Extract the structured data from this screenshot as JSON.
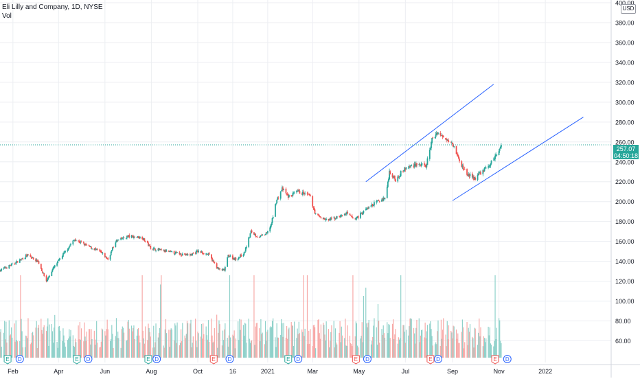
{
  "header": {
    "title": "Eli Lilly and Company, 1D, NYSE",
    "volume_label": "Vol",
    "currency": "USD"
  },
  "last_price": {
    "value": "257.07",
    "countdown": "04:50:18",
    "level": 257.07
  },
  "colors": {
    "up": "#26a69a",
    "down": "#ef5350",
    "up_volume": "#8fd1ca",
    "down_volume": "#f7a9a7",
    "channel": "#2962ff",
    "price_line": "#26a69a",
    "grid": "#eceef2"
  },
  "chart_data": {
    "type": "candlestick",
    "y_axis": {
      "min": 50,
      "max": 400,
      "ticks": [
        "400.00",
        "380.00",
        "360.00",
        "340.00",
        "320.00",
        "300.00",
        "280.00",
        "260.00",
        "240.00",
        "220.00",
        "200.00",
        "180.00",
        "160.00",
        "140.00",
        "120.00",
        "100.00",
        "80.00",
        "60.00"
      ],
      "tick_values": [
        400,
        380,
        360,
        340,
        320,
        300,
        280,
        260,
        240,
        220,
        200,
        180,
        160,
        140,
        120,
        100,
        80,
        60
      ],
      "side": "right",
      "grid": true
    },
    "x_axis": {
      "start": "2020-01-15",
      "end": "2022-03-15",
      "ticks": [
        {
          "label": "Feb",
          "date": "2020-02-01"
        },
        {
          "label": "Apr",
          "date": "2020-04-01"
        },
        {
          "label": "Jun",
          "date": "2020-06-01"
        },
        {
          "label": "Aug",
          "date": "2020-08-01"
        },
        {
          "label": "Oct",
          "date": "2020-10-01"
        },
        {
          "label": "16",
          "date": "2020-11-16"
        },
        {
          "label": "2021",
          "date": "2021-01-01"
        },
        {
          "label": "Mar",
          "date": "2021-03-01"
        },
        {
          "label": "May",
          "date": "2021-05-01"
        },
        {
          "label": "Jul",
          "date": "2021-07-01"
        },
        {
          "label": "Sep",
          "date": "2021-09-01"
        },
        {
          "label": "Nov",
          "date": "2021-11-01"
        },
        {
          "label": "2022",
          "date": "2022-01-01"
        }
      ]
    },
    "price_path": [
      [
        "2020-01-15",
        131
      ],
      [
        "2020-02-01",
        137
      ],
      [
        "2020-02-20",
        146
      ],
      [
        "2020-03-05",
        140
      ],
      [
        "2020-03-16",
        120
      ],
      [
        "2020-03-25",
        133
      ],
      [
        "2020-04-10",
        150
      ],
      [
        "2020-04-22",
        162
      ],
      [
        "2020-05-10",
        155
      ],
      [
        "2020-05-25",
        150
      ],
      [
        "2020-06-05",
        142
      ],
      [
        "2020-06-15",
        160
      ],
      [
        "2020-07-01",
        165
      ],
      [
        "2020-07-20",
        164
      ],
      [
        "2020-08-01",
        153
      ],
      [
        "2020-08-20",
        150
      ],
      [
        "2020-09-05",
        148
      ],
      [
        "2020-09-20",
        146
      ],
      [
        "2020-10-01",
        150
      ],
      [
        "2020-10-15",
        147
      ],
      [
        "2020-10-28",
        132
      ],
      [
        "2020-11-05",
        131
      ],
      [
        "2020-11-10",
        146
      ],
      [
        "2020-11-20",
        142
      ],
      [
        "2020-12-01",
        148
      ],
      [
        "2020-12-10",
        170
      ],
      [
        "2020-12-20",
        164
      ],
      [
        "2020-12-31",
        168
      ],
      [
        "2021-01-06",
        178
      ],
      [
        "2021-01-12",
        200
      ],
      [
        "2021-01-20",
        213
      ],
      [
        "2021-01-28",
        205
      ],
      [
        "2021-02-10",
        210
      ],
      [
        "2021-02-25",
        206
      ],
      [
        "2021-03-05",
        187
      ],
      [
        "2021-03-20",
        181
      ],
      [
        "2021-04-01",
        184
      ],
      [
        "2021-04-15",
        188
      ],
      [
        "2021-04-25",
        182
      ],
      [
        "2021-05-10",
        192
      ],
      [
        "2021-05-25",
        200
      ],
      [
        "2021-06-05",
        204
      ],
      [
        "2021-06-10",
        230
      ],
      [
        "2021-06-18",
        222
      ],
      [
        "2021-06-28",
        232
      ],
      [
        "2021-07-15",
        238
      ],
      [
        "2021-07-28",
        235
      ],
      [
        "2021-08-05",
        262
      ],
      [
        "2021-08-12",
        270
      ],
      [
        "2021-08-20",
        264
      ],
      [
        "2021-08-30",
        262
      ],
      [
        "2021-09-05",
        252
      ],
      [
        "2021-09-10",
        240
      ],
      [
        "2021-09-20",
        228
      ],
      [
        "2021-09-30",
        223
      ],
      [
        "2021-10-08",
        229
      ],
      [
        "2021-10-20",
        237
      ],
      [
        "2021-10-30",
        249
      ],
      [
        "2021-11-04",
        257.07
      ]
    ],
    "events": [
      {
        "type": "E",
        "date": "2020-01-25",
        "side": "up"
      },
      {
        "type": "D",
        "date": "2020-02-10",
        "side": "neutral"
      },
      {
        "type": "E",
        "date": "2020-04-25",
        "side": "up"
      },
      {
        "type": "D",
        "date": "2020-05-10",
        "side": "neutral"
      },
      {
        "type": "E",
        "date": "2020-07-28",
        "side": "up"
      },
      {
        "type": "D",
        "date": "2020-08-08",
        "side": "neutral"
      },
      {
        "type": "E",
        "date": "2020-10-22",
        "side": "down"
      },
      {
        "type": "D",
        "date": "2020-11-12",
        "side": "neutral"
      },
      {
        "type": "E",
        "date": "2021-01-28",
        "side": "up"
      },
      {
        "type": "D",
        "date": "2021-02-10",
        "side": "neutral"
      },
      {
        "type": "E",
        "date": "2021-04-27",
        "side": "down"
      },
      {
        "type": "D",
        "date": "2021-05-12",
        "side": "neutral"
      },
      {
        "type": "E",
        "date": "2021-08-03",
        "side": "down"
      },
      {
        "type": "D",
        "date": "2021-08-13",
        "side": "neutral"
      },
      {
        "type": "E",
        "date": "2021-10-27",
        "side": "down"
      },
      {
        "type": "D",
        "date": "2021-11-12",
        "side": "neutral"
      }
    ],
    "channel_lines": [
      {
        "name": "upper",
        "from": [
          "2021-05-10",
          220
        ],
        "to": [
          "2021-10-25",
          318
        ]
      },
      {
        "name": "lower",
        "from": [
          "2021-09-01",
          201
        ],
        "to": [
          "2022-02-20",
          285
        ]
      }
    ],
    "legend_position": "top-left"
  }
}
